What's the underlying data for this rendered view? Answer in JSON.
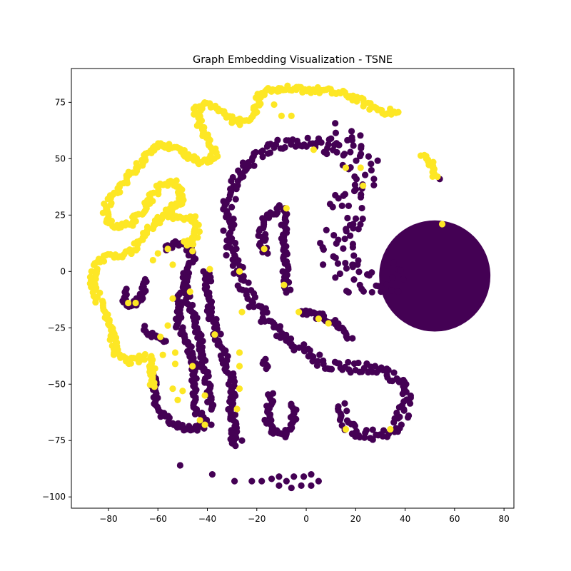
{
  "chart_data": {
    "type": "scatter",
    "title": "Graph Embedding Visualization - TSNE",
    "xlabel": "",
    "ylabel": "",
    "xlim": [
      -95,
      84
    ],
    "ylim": [
      -105,
      90
    ],
    "x_ticks": [
      -80,
      -60,
      -40,
      -20,
      0,
      20,
      40,
      60,
      80
    ],
    "y_ticks": [
      -100,
      -75,
      -50,
      -25,
      0,
      25,
      50,
      75
    ],
    "grid": false,
    "legend": "none",
    "colors": {
      "class_0": "#440154",
      "class_1": "#fde725"
    },
    "series": [
      {
        "class": 0,
        "blob": {
          "center": [
            52,
            -2
          ],
          "radius": 22.5
        },
        "bands": [
          {
            "points": [
              [
                6,
                58
              ],
              [
                -14,
                56
              ],
              [
                -26,
                46
              ],
              [
                -31,
                32
              ],
              [
                -31,
                12
              ],
              [
                -27,
                -3
              ],
              [
                -20,
                -16
              ],
              [
                -12,
                -26
              ],
              [
                -3,
                -34
              ],
              [
                8,
                -41
              ],
              [
                20,
                -43
              ],
              [
                32,
                -44
              ],
              [
                40,
                -50
              ],
              [
                40,
                -62
              ],
              [
                34,
                -71
              ],
              [
                24,
                -73
              ],
              [
                16,
                -68
              ],
              [
                14,
                -58
              ]
            ],
            "half_width": 2.6
          },
          {
            "points": [
              [
                6,
                58
              ],
              [
                14,
                60
              ],
              [
                20,
                56
              ],
              [
                22,
                46
              ],
              [
                19,
                34
              ],
              [
                14,
                20
              ],
              [
                12,
                8
              ],
              [
                16,
                -2
              ],
              [
                28,
                -3
              ],
              [
                40,
                -2
              ]
            ],
            "half_width": 7.5
          },
          {
            "points": [
              [
                -10,
                28
              ],
              [
                -16,
                24
              ],
              [
                -18,
                16
              ],
              [
                -17,
                7
              ]
            ],
            "half_width": 1.6
          },
          {
            "points": [
              [
                -8,
                28
              ],
              [
                -9,
                18
              ],
              [
                -9,
                6
              ],
              [
                -8,
                -5
              ],
              [
                -7,
                -10
              ]
            ],
            "half_width": 1.4
          },
          {
            "points": [
              [
                -40,
                0
              ],
              [
                -40,
                -12
              ],
              [
                -37,
                -25
              ],
              [
                -33,
                -37
              ],
              [
                -30,
                -50
              ],
              [
                -30,
                -62
              ],
              [
                -29,
                -72
              ],
              [
                -30,
                -78
              ]
            ],
            "half_width": 1.6
          },
          {
            "points": [
              [
                -2,
                -18
              ],
              [
                6,
                -20
              ],
              [
                12,
                -23
              ],
              [
                16,
                -27
              ],
              [
                18,
                -31
              ]
            ],
            "half_width": 1.4
          },
          {
            "points": [
              [
                -17,
                -39
              ],
              [
                -16,
                -44
              ]
            ],
            "half_width": 1.2
          },
          {
            "points": [
              [
                -14,
                -54
              ],
              [
                -16,
                -64
              ],
              [
                -14,
                -71
              ],
              [
                -9,
                -73
              ],
              [
                -5,
                -68
              ],
              [
                -5,
                -58
              ]
            ],
            "half_width": 1.3
          },
          {
            "points": [
              [
                -57,
                10
              ],
              [
                -53,
                13
              ],
              [
                -48,
                12
              ],
              [
                -46,
                6
              ],
              [
                -49,
                -2
              ],
              [
                -51,
                -12
              ],
              [
                -52,
                -22
              ],
              [
                -50,
                -30
              ],
              [
                -46,
                -36
              ],
              [
                -45,
                -45
              ],
              [
                -45,
                -55
              ],
              [
                -45,
                -62
              ],
              [
                -39,
                -67
              ],
              [
                -44,
                -70
              ],
              [
                -52,
                -69
              ],
              [
                -58,
                -64
              ],
              [
                -62,
                -55
              ],
              [
                -62,
                -45
              ]
            ],
            "half_width": 1.4
          },
          {
            "points": [
              [
                -49,
                -2
              ],
              [
                -48,
                -12
              ],
              [
                -44,
                -25
              ],
              [
                -42,
                -38
              ],
              [
                -40,
                -50
              ],
              [
                -38,
                -62
              ]
            ],
            "half_width": 1.3
          },
          {
            "points": [
              [
                -66,
                -25
              ],
              [
                -60,
                -30
              ],
              [
                -56,
                -30
              ]
            ],
            "half_width": 1.2
          },
          {
            "points": [
              [
                -72,
                -8
              ],
              [
                -74,
                -14
              ],
              [
                -70,
                -15
              ],
              [
                -66,
                -10
              ],
              [
                -64,
                -3
              ]
            ],
            "half_width": 1.2
          }
        ],
        "points": [
          [
            -51,
            -86
          ],
          [
            -38,
            -90
          ],
          [
            -29,
            -93
          ],
          [
            -22,
            -93
          ],
          [
            -18,
            -93
          ],
          [
            -14,
            -92
          ],
          [
            -11,
            -95
          ],
          [
            -11,
            -91
          ],
          [
            -8,
            -93
          ],
          [
            -6,
            -96
          ],
          [
            -5,
            -91
          ],
          [
            -2,
            -95
          ],
          [
            -1,
            -91
          ],
          [
            2,
            -95
          ],
          [
            2,
            -90
          ],
          [
            5,
            -93
          ],
          [
            54,
            41
          ],
          [
            -26,
            -75
          ],
          [
            -8,
            -72
          ]
        ]
      },
      {
        "class": 1,
        "bands": [
          {
            "points": [
              [
                -4,
                81
              ],
              [
                8,
                80
              ],
              [
                18,
                78
              ],
              [
                26,
                73
              ],
              [
                32,
                71
              ],
              [
                38,
                70
              ]
            ],
            "half_width": 1.5
          },
          {
            "points": [
              [
                -4,
                81
              ],
              [
                -12,
                81
              ],
              [
                -18,
                79
              ],
              [
                -20,
                74
              ],
              [
                -22,
                68
              ],
              [
                -28,
                66
              ],
              [
                -33,
                70
              ],
              [
                -36,
                73
              ],
              [
                -40,
                74
              ],
              [
                -44,
                73
              ],
              [
                -44,
                68
              ],
              [
                -42,
                62
              ],
              [
                -38,
                56
              ],
              [
                -37,
                50
              ],
              [
                -40,
                48
              ],
              [
                -46,
                50
              ],
              [
                -52,
                54
              ],
              [
                -58,
                57
              ],
              [
                -62,
                55
              ],
              [
                -66,
                49
              ],
              [
                -72,
                42
              ],
              [
                -78,
                34
              ],
              [
                -82,
                27
              ],
              [
                -79,
                21
              ],
              [
                -74,
                20
              ],
              [
                -70,
                22
              ],
              [
                -66,
                28
              ],
              [
                -62,
                34
              ],
              [
                -58,
                39
              ],
              [
                -54,
                40
              ],
              [
                -51,
                37
              ],
              [
                -50,
                32
              ],
              [
                -54,
                28
              ],
              [
                -58,
                24
              ],
              [
                -62,
                21
              ],
              [
                -66,
                16
              ],
              [
                -68,
                12
              ],
              [
                -72,
                8
              ],
              [
                -78,
                7
              ],
              [
                -83,
                5
              ],
              [
                -86,
                0
              ],
              [
                -86,
                -5
              ],
              [
                -84,
                -13
              ],
              [
                -80,
                -20
              ],
              [
                -78,
                -26
              ],
              [
                -78,
                -32
              ],
              [
                -76,
                -38
              ],
              [
                -72,
                -40
              ],
              [
                -68,
                -39
              ],
              [
                -64,
                -38
              ],
              [
                -62,
                -45
              ],
              [
                -62,
                -52
              ]
            ],
            "half_width": 1.5
          },
          {
            "points": [
              [
                -56,
                25
              ],
              [
                -52,
                24
              ],
              [
                -46,
                24
              ],
              [
                -44,
                18
              ],
              [
                -46,
                13
              ],
              [
                -50,
                12
              ]
            ],
            "half_width": 1.3
          },
          {
            "points": [
              [
                47,
                52
              ],
              [
                50,
                49
              ],
              [
                51,
                45
              ],
              [
                53,
                41
              ]
            ],
            "half_width": 1.2
          }
        ],
        "points": [
          [
            -59,
            -29
          ],
          [
            -58,
            -37
          ],
          [
            -53,
            -36
          ],
          [
            -52,
            -57
          ],
          [
            -54,
            -52
          ],
          [
            -50,
            -53
          ],
          [
            -41,
            -55
          ],
          [
            -41,
            -68
          ],
          [
            -43,
            -66
          ],
          [
            -37,
            -28
          ],
          [
            -27,
            -36
          ],
          [
            -27,
            -42
          ],
          [
            -27,
            -52
          ],
          [
            -28,
            -61
          ],
          [
            -26,
            -18
          ],
          [
            -27,
            0
          ],
          [
            -53,
            -41
          ],
          [
            -46,
            -42
          ],
          [
            -56,
            -24
          ],
          [
            -72,
            -14
          ],
          [
            -69,
            -14
          ],
          [
            -60,
            8
          ],
          [
            -62,
            5
          ],
          [
            -54,
            3
          ],
          [
            -54,
            -12
          ],
          [
            -47,
            -9
          ],
          [
            -46,
            9
          ],
          [
            -56,
            10
          ],
          [
            -39,
            1
          ],
          [
            -8,
            28
          ],
          [
            -17,
            10
          ],
          [
            -9,
            -6
          ],
          [
            -3,
            -18
          ],
          [
            5,
            -21
          ],
          [
            9,
            -23
          ],
          [
            16,
            46
          ],
          [
            22,
            46
          ],
          [
            23,
            38
          ],
          [
            3,
            54
          ],
          [
            16,
            -70
          ],
          [
            34,
            -70
          ],
          [
            55,
            21
          ],
          [
            -11,
            80
          ],
          [
            -13,
            74
          ],
          [
            -10,
            69
          ],
          [
            -6,
            69
          ]
        ]
      }
    ]
  }
}
